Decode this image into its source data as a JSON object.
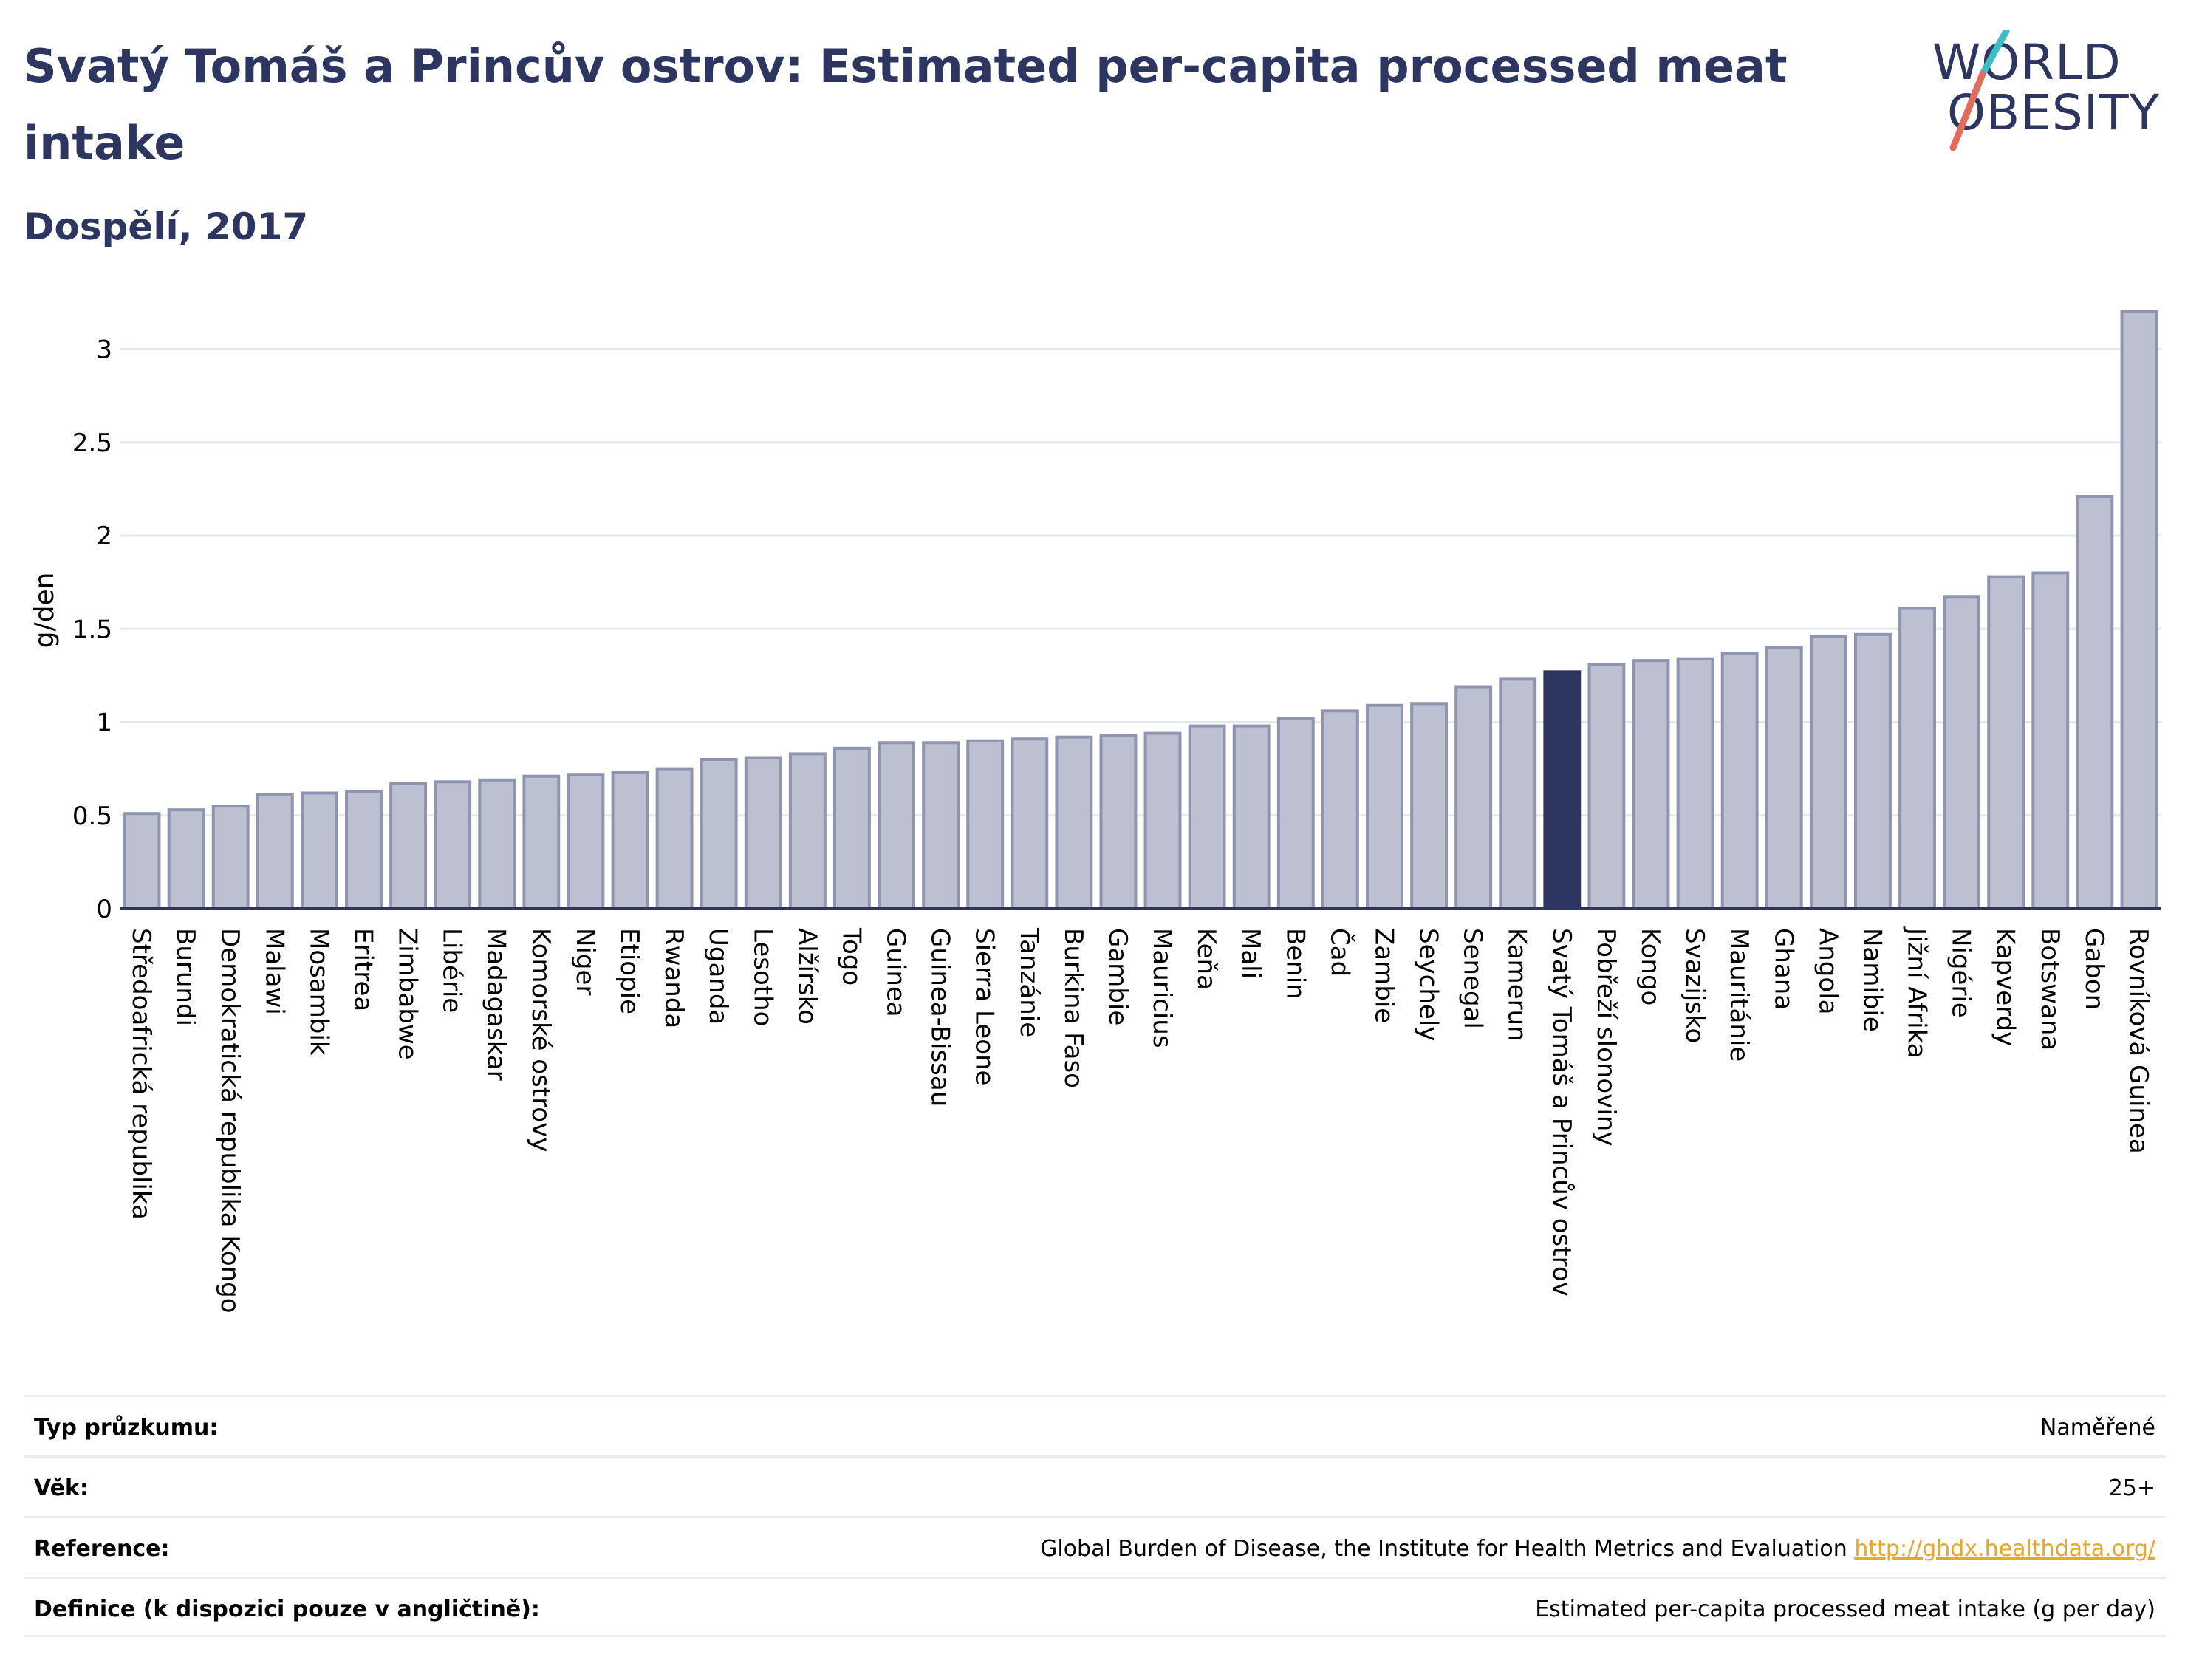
{
  "header": {
    "title": "Svatý Tomáš a Princův ostrov: Estimated per-capita processed meat intake",
    "subtitle": "Dospělí, 2017"
  },
  "logo": {
    "line1": "WORLD",
    "line2": "OBESITY",
    "colors": {
      "text": "#2d3561",
      "slash_top": "#3bbfc4",
      "slash_bottom": "#e36b5c"
    }
  },
  "colors": {
    "bar_fill": "#bdc0d1",
    "bar_stroke": "#8f94b0",
    "highlight_fill": "#2d3561",
    "grid": "#e5e7ee",
    "axis_line": "#2d3561",
    "title": "#2d3561",
    "link": "#e8a92b"
  },
  "chart_data": {
    "type": "bar",
    "ylabel": "g/den",
    "xlabel": "",
    "ylim": [
      0,
      3.2
    ],
    "yticks": [
      0,
      0.5,
      1,
      1.5,
      2,
      2.5,
      3
    ],
    "ytick_labels": [
      "0",
      "0.5",
      "1",
      "1.5",
      "2",
      "2.5",
      "3"
    ],
    "grid": true,
    "highlight": "Svatý Tomáš a Princův ostrov",
    "categories": [
      "Středoafrická republika",
      "Burundi",
      "Demokratická republika Kongo",
      "Malawi",
      "Mosambik",
      "Eritrea",
      "Zimbabwe",
      "Libérie",
      "Madagaskar",
      "Komorské ostrovy",
      "Niger",
      "Etiopie",
      "Rwanda",
      "Uganda",
      "Lesotho",
      "Alžírsko",
      "Togo",
      "Guinea",
      "Guinea-Bissau",
      "Sierra Leone",
      "Tanzánie",
      "Burkina Faso",
      "Gambie",
      "Mauricius",
      "Keňa",
      "Mali",
      "Benin",
      "Čad",
      "Zambie",
      "Seychely",
      "Senegal",
      "Kamerun",
      "Svatý Tomáš a Princův ostrov",
      "Pobřeží slonoviny",
      "Kongo",
      "Svazijsko",
      "Mauritánie",
      "Ghana",
      "Angola",
      "Namibie",
      "Jižní Afrika",
      "Nigérie",
      "Kapverdy",
      "Botswana",
      "Gabon",
      "Rovníková Guinea"
    ],
    "values": [
      0.51,
      0.53,
      0.55,
      0.61,
      0.62,
      0.63,
      0.67,
      0.68,
      0.69,
      0.71,
      0.72,
      0.73,
      0.75,
      0.8,
      0.81,
      0.83,
      0.86,
      0.89,
      0.89,
      0.9,
      0.91,
      0.92,
      0.93,
      0.94,
      0.98,
      0.98,
      1.02,
      1.06,
      1.09,
      1.1,
      1.19,
      1.23,
      1.27,
      1.31,
      1.33,
      1.34,
      1.37,
      1.4,
      1.46,
      1.47,
      1.61,
      1.67,
      1.78,
      1.8,
      2.21,
      3.2
    ]
  },
  "info": {
    "rows": [
      {
        "label": "Typ průzkumu:",
        "value": "Naměřené"
      },
      {
        "label": "Věk:",
        "value": "25+"
      },
      {
        "label": "Reference:",
        "value": "Global Burden of Disease, the Institute for Health Metrics and Evaluation",
        "link": "http://ghdx.healthdata.org/"
      },
      {
        "label": "Definice (k dispozici pouze v angličtině):",
        "value": "Estimated per-capita processed meat intake (g per day)"
      }
    ]
  }
}
